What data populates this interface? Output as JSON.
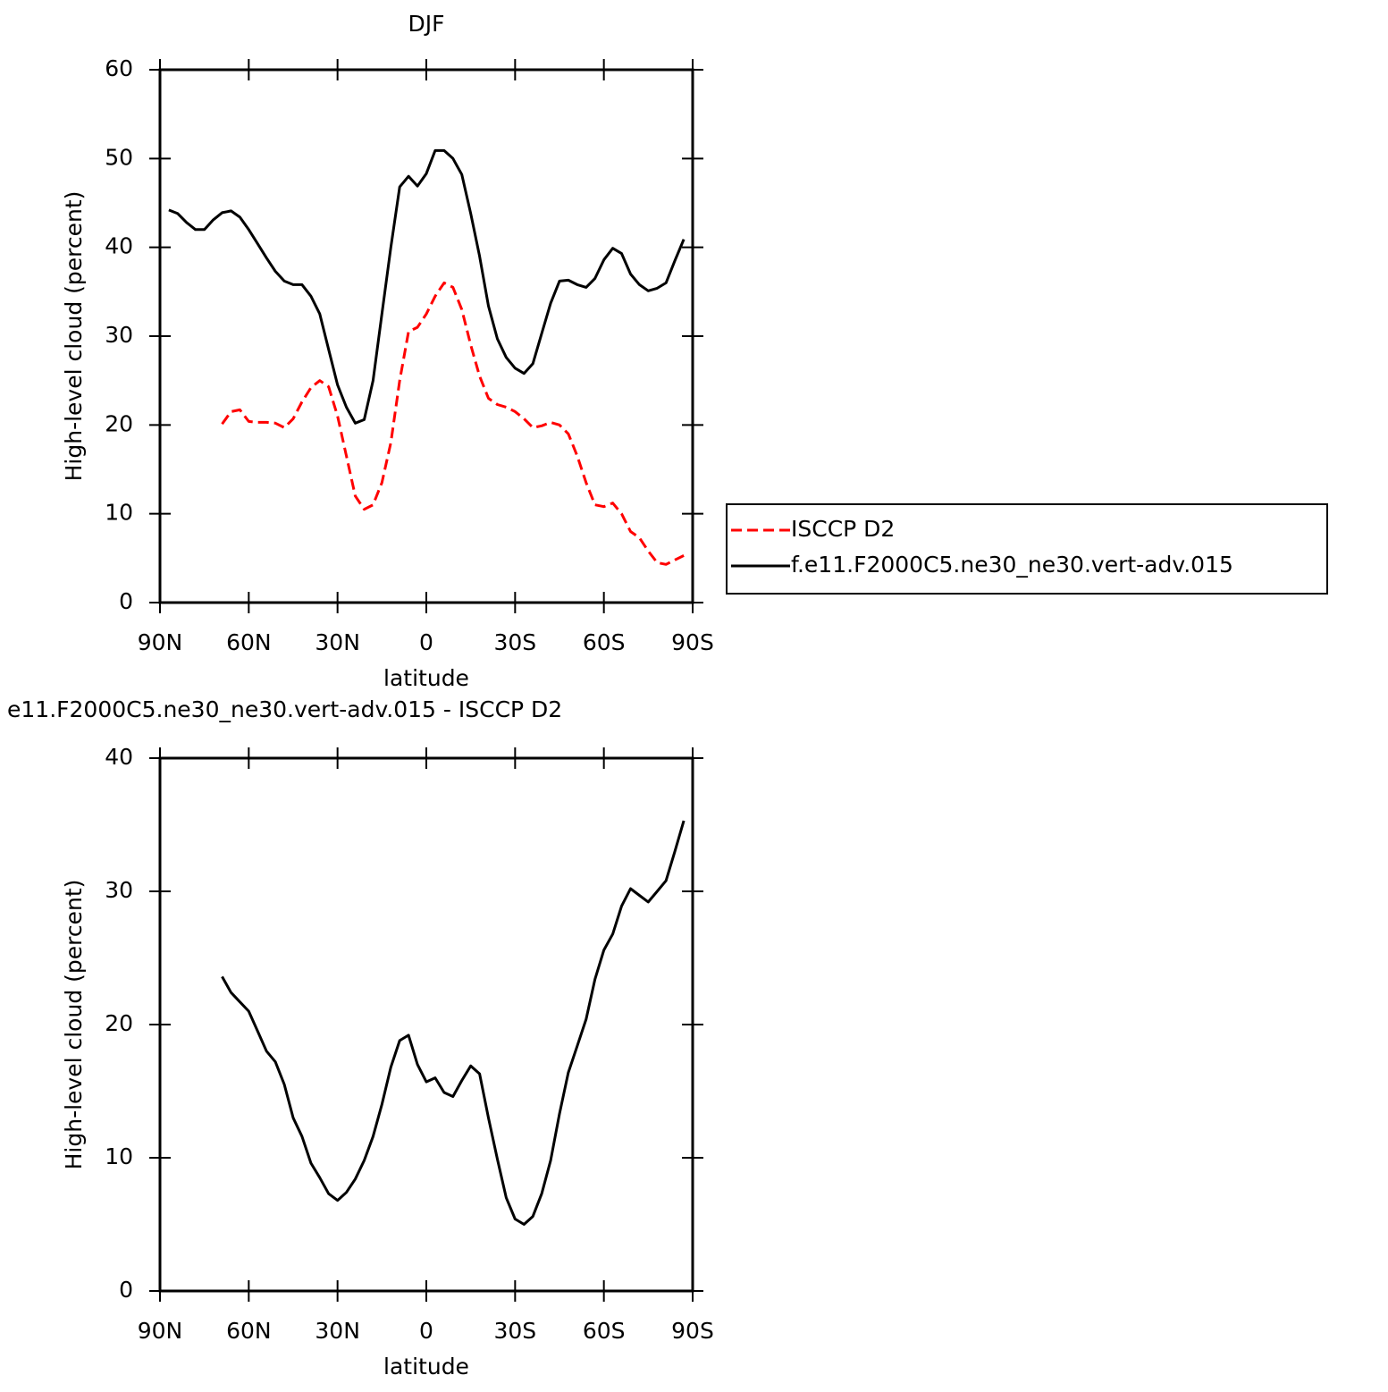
{
  "chart_data": [
    {
      "type": "line",
      "title": "DJF",
      "xlabel": "latitude",
      "ylabel": "High-level cloud (percent)",
      "x": [
        87,
        84,
        81,
        78,
        75,
        72,
        69,
        66,
        63,
        60,
        57,
        54,
        51,
        48,
        45,
        42,
        39,
        36,
        33,
        30,
        27,
        24,
        21,
        18,
        15,
        12,
        9,
        6,
        3,
        0,
        -3,
        -6,
        -9,
        -12,
        -15,
        -18,
        -21,
        -24,
        -27,
        -30,
        -33,
        -36,
        -39,
        -42,
        -45,
        -48,
        -51,
        -54,
        -57,
        -60,
        -63,
        -66,
        -69,
        -72,
        -75,
        -78,
        -81,
        -84,
        -87
      ],
      "xlim": [
        90,
        -90
      ],
      "xticks": [
        {
          "value": 90,
          "label": "90N"
        },
        {
          "value": 60,
          "label": "60N"
        },
        {
          "value": 30,
          "label": "30N"
        },
        0,
        {
          "value": -30,
          "label": "30S"
        },
        {
          "value": -60,
          "label": "60S"
        },
        {
          "value": -90,
          "label": "90S"
        }
      ],
      "ylim": [
        0,
        60
      ],
      "yticks": [
        0,
        10,
        20,
        30,
        40,
        50,
        60
      ],
      "legend": "right",
      "series": [
        {
          "name": "ISCCP D2",
          "color": "#ff0000",
          "linestyle": "dashed",
          "values": [
            null,
            null,
            null,
            null,
            null,
            null,
            20.1,
            21.5,
            21.7,
            20.4,
            20.3,
            20.3,
            20.2,
            19.7,
            20.7,
            22.6,
            24.2,
            25.0,
            24.3,
            21.0,
            16.5,
            12.0,
            10.5,
            11.0,
            13.5,
            18.0,
            25.0,
            30.5,
            31.0,
            32.5,
            34.5,
            36.0,
            35.5,
            33.0,
            29.0,
            25.5,
            23.0,
            22.3,
            22.0,
            21.5,
            20.7,
            19.7,
            19.9,
            20.3,
            20.0,
            19.0,
            16.5,
            13.5,
            11.0,
            10.8,
            11.2,
            10.0,
            8.0,
            7.3,
            5.8,
            4.5,
            4.3,
            4.8,
            5.3
          ]
        },
        {
          "name": "f.e11.F2000C5.ne30_ne30.vert-adv.015",
          "color": "#000000",
          "linestyle": "solid",
          "values": [
            44.2,
            43.8,
            42.8,
            42.0,
            42.0,
            43.1,
            43.9,
            44.1,
            43.4,
            42.0,
            40.4,
            38.8,
            37.3,
            36.2,
            35.8,
            35.8,
            34.5,
            32.5,
            28.5,
            24.5,
            22.0,
            20.2,
            20.6,
            25.0,
            32.5,
            40.0,
            46.8,
            48.0,
            46.9,
            48.3,
            50.9,
            50.9,
            50.0,
            48.2,
            43.8,
            39.0,
            33.4,
            29.7,
            27.6,
            26.4,
            25.8,
            26.9,
            30.3,
            33.7,
            36.2,
            36.3,
            35.8,
            35.5,
            36.5,
            38.6,
            39.9,
            39.3,
            37.0,
            35.8,
            35.1,
            35.4,
            36.0,
            38.5,
            40.9
          ]
        }
      ]
    },
    {
      "type": "line",
      "title": "e11.F2000C5.ne30_ne30.vert-adv.015 - ISCCP D2",
      "xlabel": "latitude",
      "ylabel": "High-level cloud (percent)",
      "x": [
        87,
        84,
        81,
        78,
        75,
        72,
        69,
        66,
        63,
        60,
        57,
        54,
        51,
        48,
        45,
        42,
        39,
        36,
        33,
        30,
        27,
        24,
        21,
        18,
        15,
        12,
        9,
        6,
        3,
        0,
        -3,
        -6,
        -9,
        -12,
        -15,
        -18,
        -21,
        -24,
        -27,
        -30,
        -33,
        -36,
        -39,
        -42,
        -45,
        -48,
        -51,
        -54,
        -57,
        -60,
        -63,
        -66,
        -69,
        -72,
        -75,
        -78,
        -81,
        -84,
        -87
      ],
      "xlim": [
        90,
        -90
      ],
      "xticks": [
        {
          "value": 90,
          "label": "90N"
        },
        {
          "value": 60,
          "label": "60N"
        },
        {
          "value": 30,
          "label": "30N"
        },
        0,
        {
          "value": -30,
          "label": "30S"
        },
        {
          "value": -60,
          "label": "60S"
        },
        {
          "value": -90,
          "label": "90S"
        }
      ],
      "ylim": [
        0,
        40
      ],
      "yticks": [
        0,
        10,
        20,
        30,
        40
      ],
      "series": [
        {
          "color": "#000000",
          "linestyle": "solid",
          "values": [
            null,
            null,
            null,
            null,
            null,
            null,
            23.6,
            22.4,
            21.7,
            21.0,
            19.5,
            18.0,
            17.2,
            15.5,
            13.0,
            11.6,
            9.6,
            8.5,
            7.3,
            6.8,
            7.4,
            8.4,
            9.8,
            11.6,
            14.0,
            16.8,
            18.8,
            19.2,
            17.0,
            15.7,
            16.0,
            14.9,
            14.6,
            15.8,
            16.9,
            16.3,
            13.0,
            9.9,
            7.0,
            5.4,
            5.0,
            5.6,
            7.3,
            9.8,
            13.3,
            16.4,
            18.4,
            20.4,
            23.4,
            25.6,
            26.8,
            28.9,
            30.2,
            29.7,
            29.2,
            30.0,
            30.8,
            33.0,
            35.3
          ]
        }
      ]
    }
  ]
}
